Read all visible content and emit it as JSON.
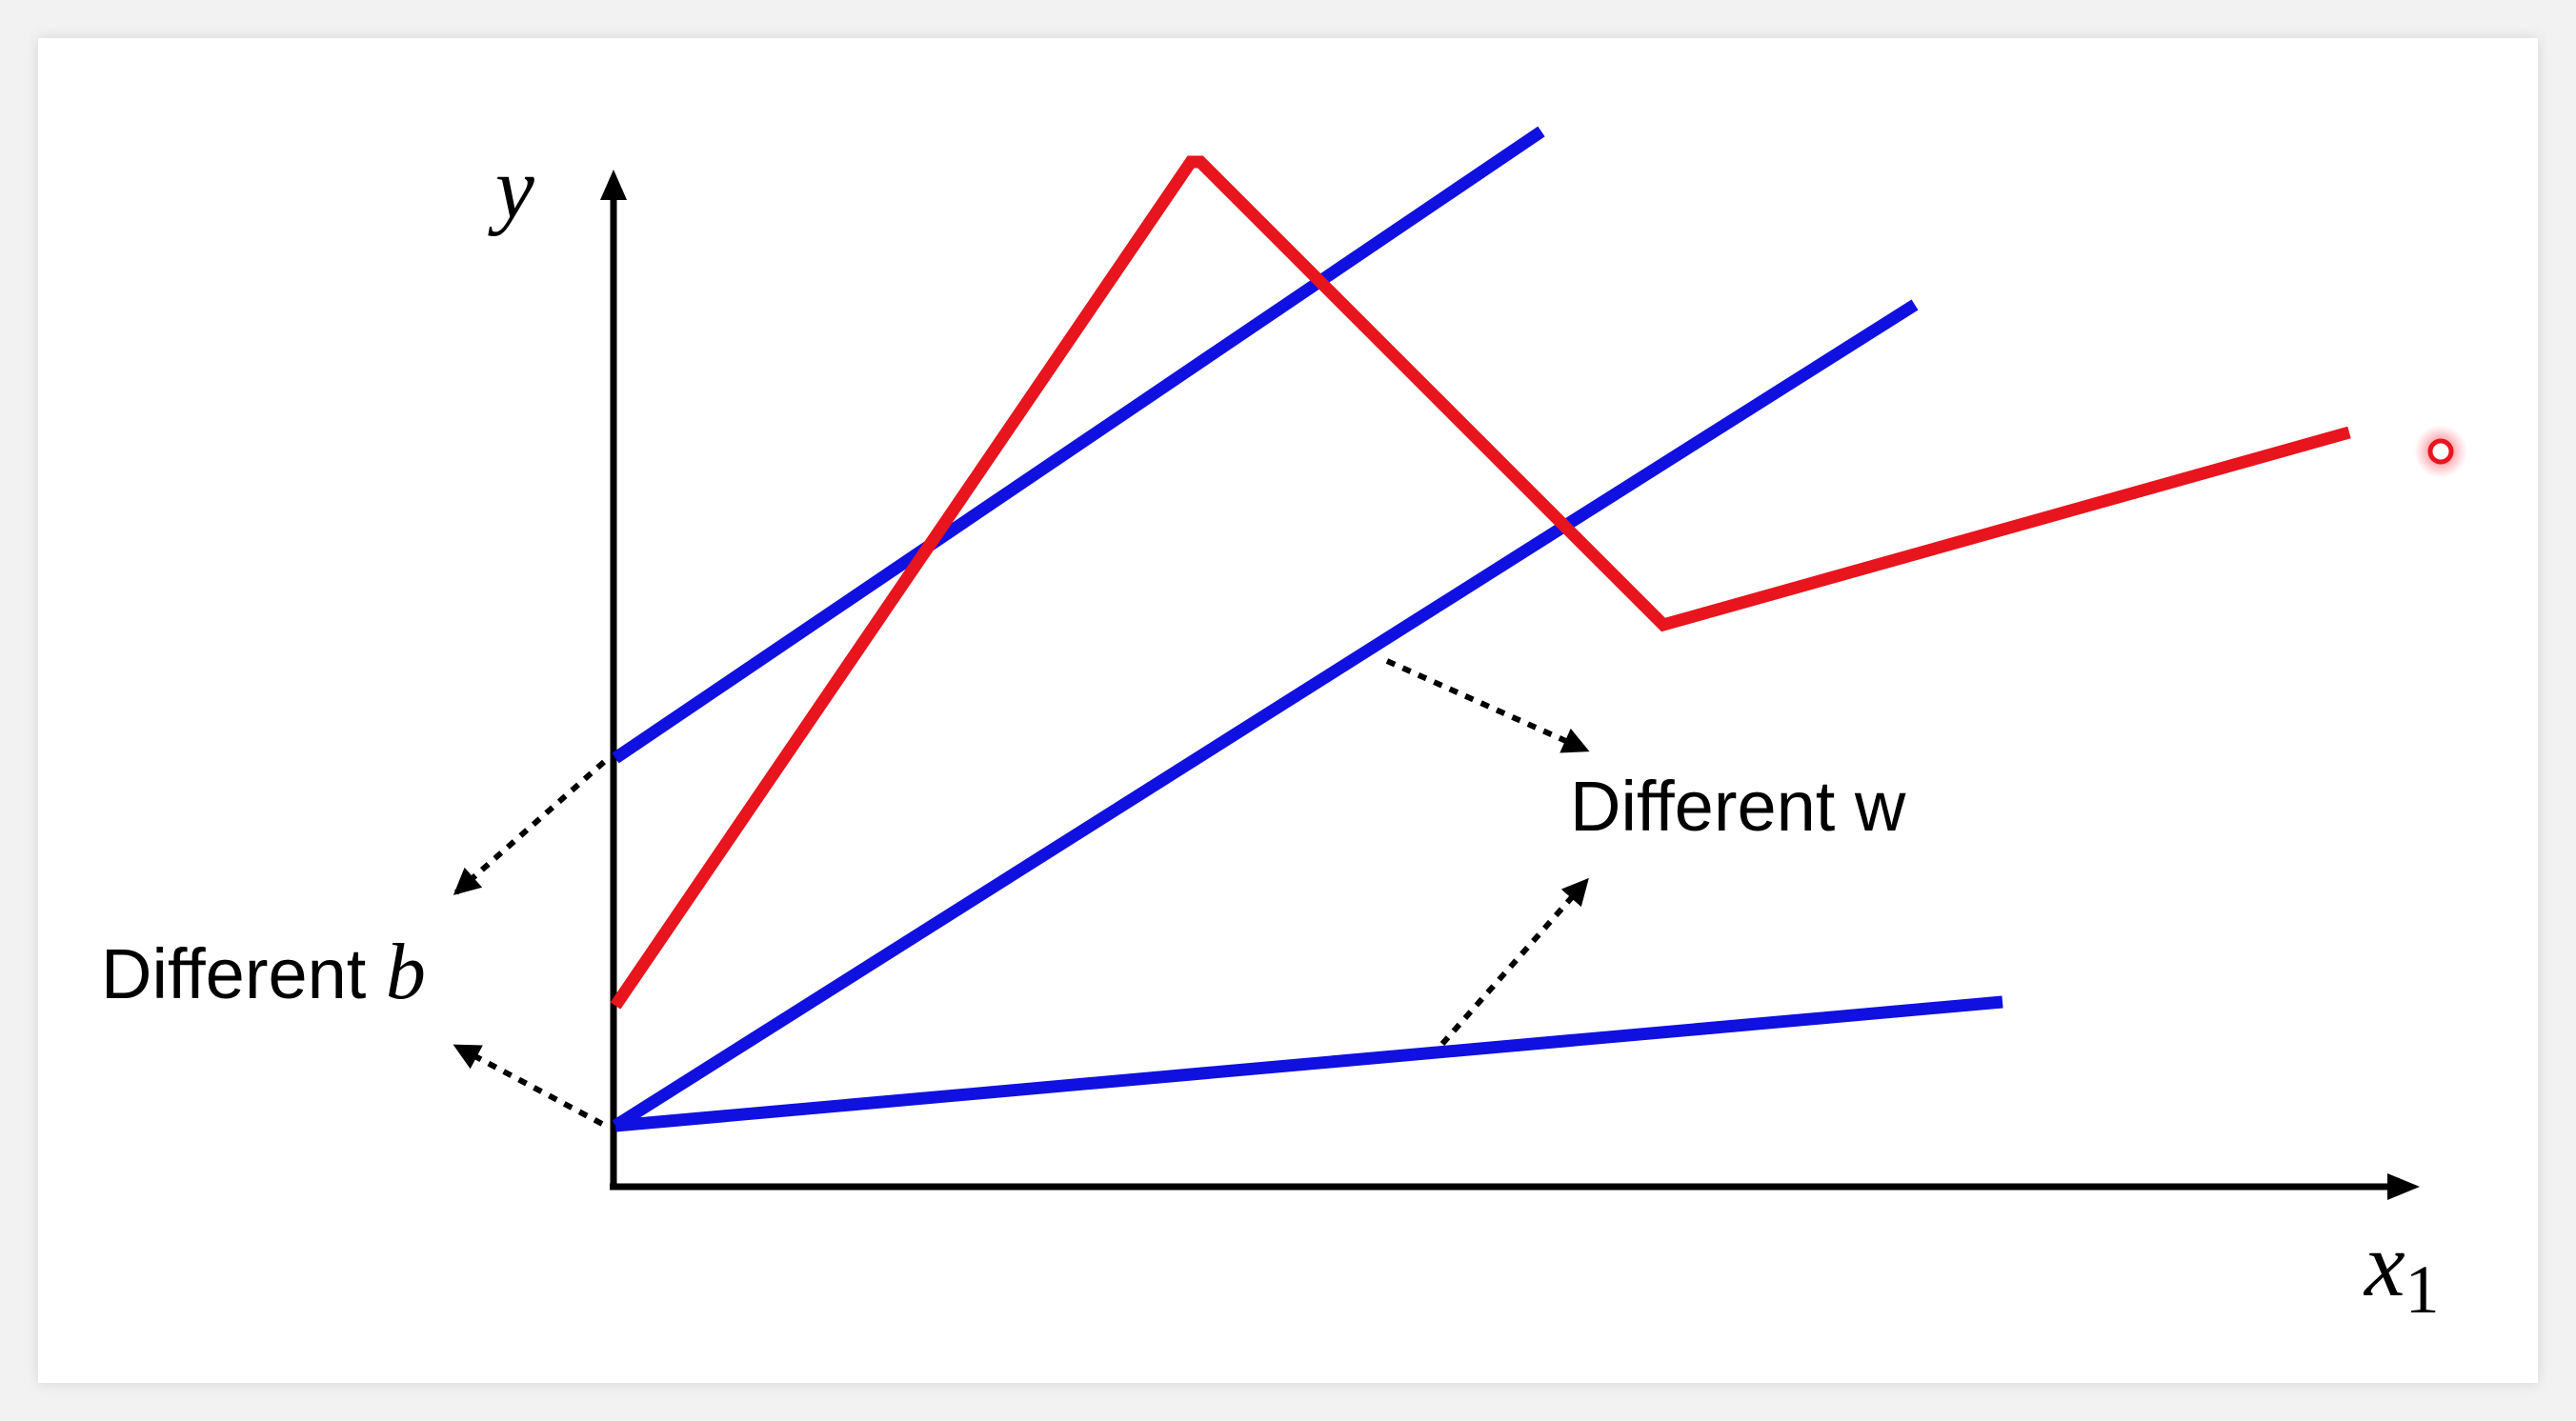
{
  "axes": {
    "y_label": "y",
    "x_label_base": "x",
    "x_label_subscript": "1"
  },
  "annotations": {
    "different_b_prefix": "Different ",
    "different_b_var": "b",
    "different_w": "Different w"
  },
  "colors": {
    "piecewise_line": "#e8141e",
    "linear_lines": "#1010e0",
    "axes": "#000000",
    "arrows": "#000000",
    "pointer_dot": "#e8141e"
  },
  "icons": {
    "pointer": "laser-pointer-dot-icon"
  }
}
